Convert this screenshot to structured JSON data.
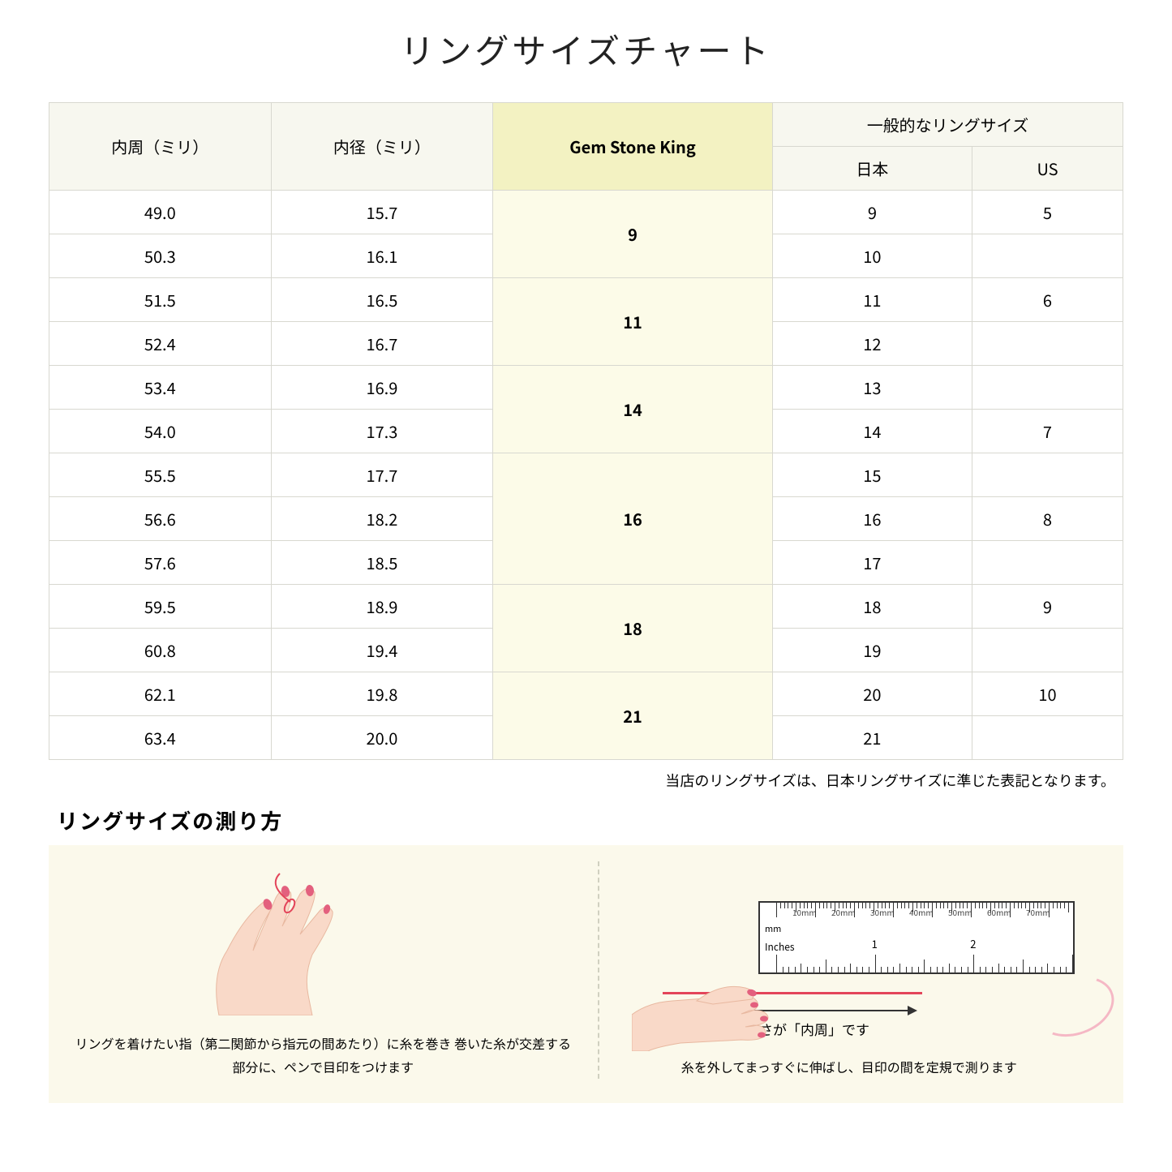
{
  "title": "リングサイズチャート",
  "table": {
    "headers": {
      "circumference": "内周（ミリ）",
      "diameter": "内径（ミリ）",
      "gsk": "Gem Stone King",
      "general": "一般的なリングサイズ",
      "japan": "日本",
      "us": "US"
    },
    "groups": [
      {
        "gsk": "9",
        "rows": [
          {
            "c": "49.0",
            "d": "15.7",
            "jp": "9",
            "us": "5"
          },
          {
            "c": "50.3",
            "d": "16.1",
            "jp": "10",
            "us": ""
          }
        ]
      },
      {
        "gsk": "11",
        "rows": [
          {
            "c": "51.5",
            "d": "16.5",
            "jp": "11",
            "us": "6"
          },
          {
            "c": "52.4",
            "d": "16.7",
            "jp": "12",
            "us": ""
          }
        ]
      },
      {
        "gsk": "14",
        "rows": [
          {
            "c": "53.4",
            "d": "16.9",
            "jp": "13",
            "us": ""
          },
          {
            "c": "54.0",
            "d": "17.3",
            "jp": "14",
            "us": "7"
          }
        ]
      },
      {
        "gsk": "16",
        "rows": [
          {
            "c": "55.5",
            "d": "17.7",
            "jp": "15",
            "us": ""
          },
          {
            "c": "56.6",
            "d": "18.2",
            "jp": "16",
            "us": "8"
          },
          {
            "c": "57.6",
            "d": "18.5",
            "jp": "17",
            "us": ""
          }
        ]
      },
      {
        "gsk": "18",
        "rows": [
          {
            "c": "59.5",
            "d": "18.9",
            "jp": "18",
            "us": "9"
          },
          {
            "c": "60.8",
            "d": "19.4",
            "jp": "19",
            "us": ""
          }
        ]
      },
      {
        "gsk": "21",
        "rows": [
          {
            "c": "62.1",
            "d": "19.8",
            "jp": "20",
            "us": "10"
          },
          {
            "c": "63.4",
            "d": "20.0",
            "jp": "21",
            "us": ""
          }
        ]
      }
    ]
  },
  "note": "当店のリングサイズは、日本リングサイズに準じた表記となります。",
  "subtitle": "リングサイズの測り方",
  "howto": {
    "left_caption": "リングを着けたい指（第二関節から指元の間あたり）に糸を巻き\n巻いた糸が交差する部分に、ペンで目印をつけます",
    "right_caption": "糸を外してまっすぐに伸ばし、目印の間を定規で測ります",
    "arrow_label": "この長さが「内周」です",
    "ruler": {
      "mm_label": "mm",
      "in_label": "Inches",
      "mm_marks": [
        "10mm",
        "20mm",
        "30mm",
        "40mm",
        "50mm",
        "60mm",
        "70mm"
      ],
      "in_marks": [
        "1",
        "2"
      ]
    }
  },
  "colors": {
    "header_bg": "#f7f7ef",
    "gsk_header_bg": "#f3f2c2",
    "gsk_cell_bg": "#fcfbe8",
    "border": "#d8d8d0",
    "howto_bg": "#fbf9eb",
    "skin": "#f9d9c8",
    "nail": "#e3607e",
    "thread": "#e3455a"
  }
}
